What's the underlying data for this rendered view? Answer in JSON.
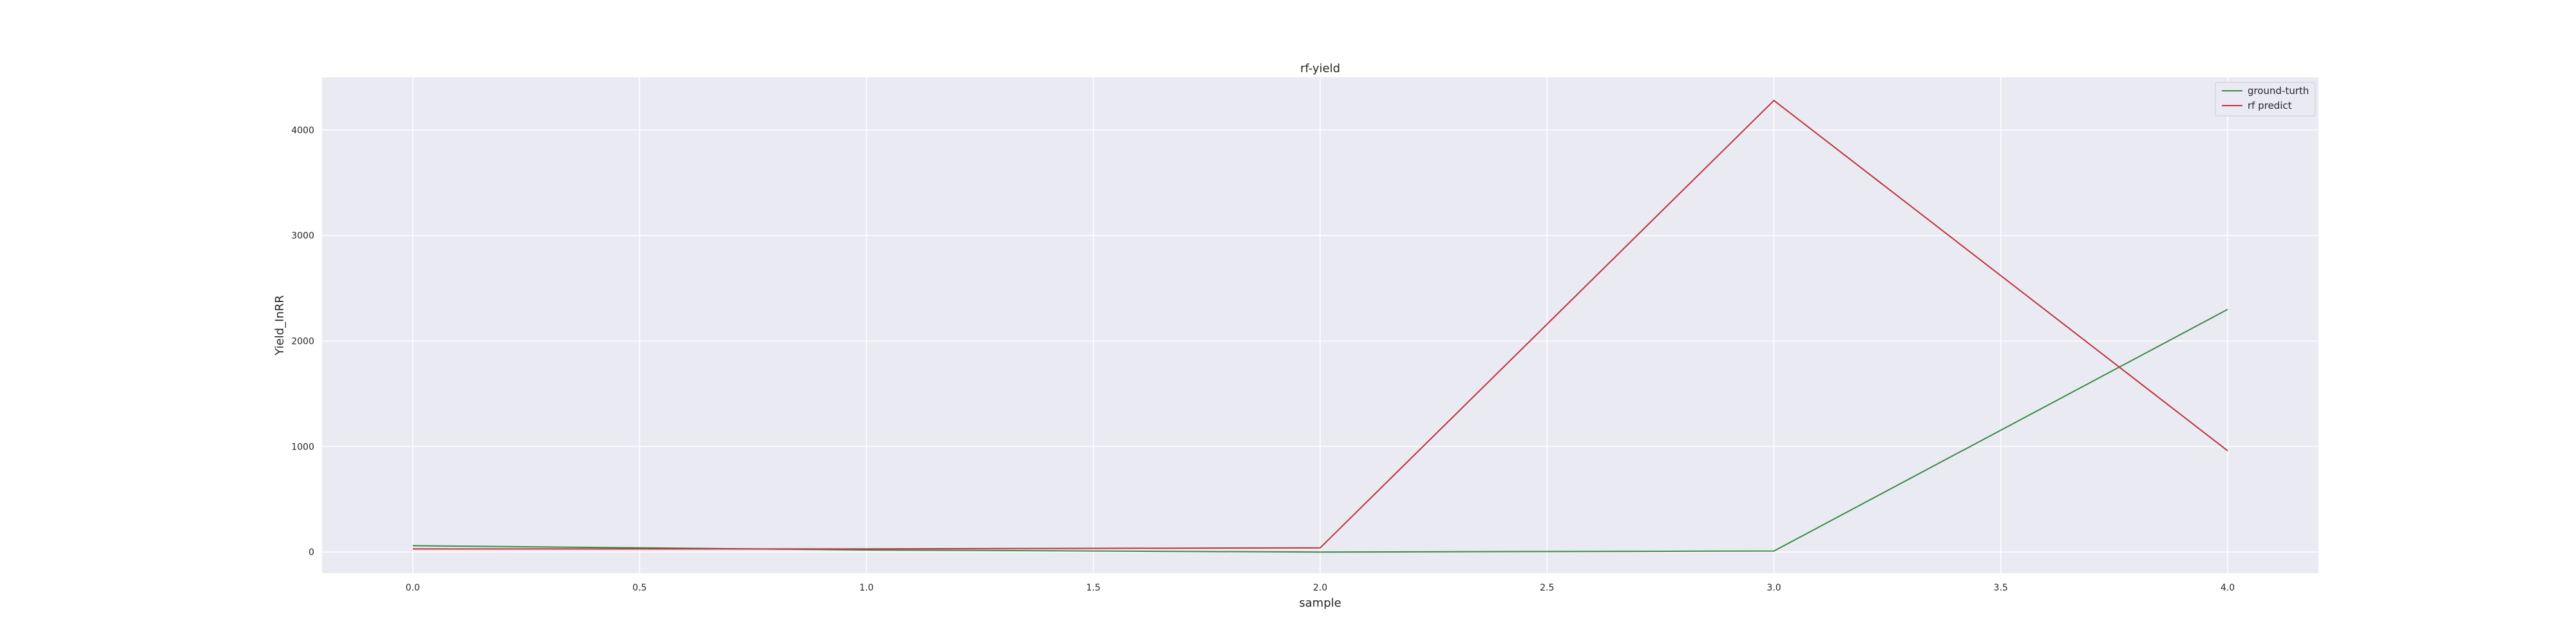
{
  "chart_data": {
    "type": "line",
    "title": "rf-yield",
    "xlabel": "sample",
    "ylabel": "Yield_InRR",
    "x": [
      0,
      1,
      2,
      3,
      4
    ],
    "series": [
      {
        "name": "ground-turth",
        "color": "#3a8a47",
        "values": [
          60,
          20,
          0,
          10,
          2300
        ]
      },
      {
        "name": "rf predict",
        "color": "#c0313c",
        "values": [
          30,
          30,
          40,
          4280,
          960
        ]
      }
    ],
    "xlim": [
      -0.2,
      4.2
    ],
    "ylim": [
      -200,
      4500
    ],
    "xticks": [
      0.0,
      0.5,
      1.0,
      1.5,
      2.0,
      2.5,
      3.0,
      3.5,
      4.0
    ],
    "xtick_labels": [
      "0.0",
      "0.5",
      "1.0",
      "1.5",
      "2.0",
      "2.5",
      "3.0",
      "3.5",
      "4.0"
    ],
    "yticks": [
      0,
      1000,
      2000,
      3000,
      4000
    ],
    "ytick_labels": [
      "0",
      "1000",
      "2000",
      "3000",
      "4000"
    ],
    "grid": true,
    "legend_position": "top-right",
    "plot_background": "#eaeaf2",
    "grid_color": "#ffffff"
  }
}
